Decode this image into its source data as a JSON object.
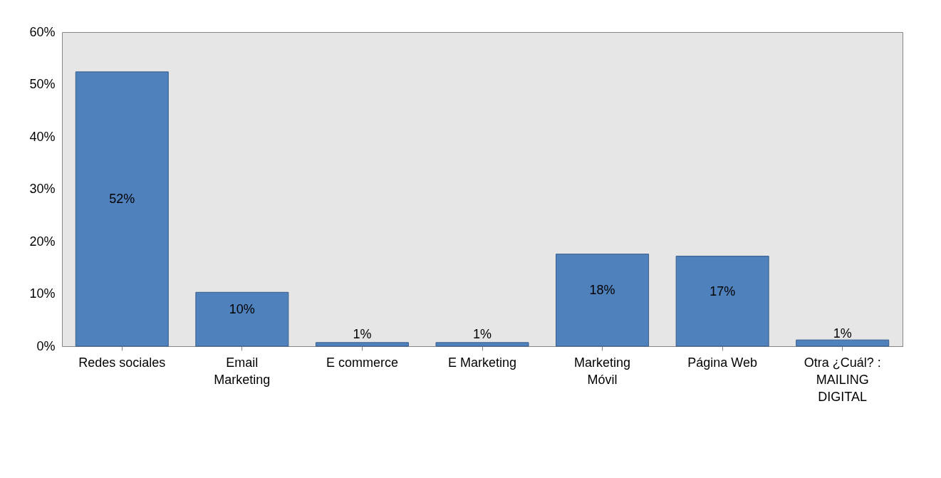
{
  "chart_data": {
    "type": "bar",
    "categories": [
      "Redes sociales",
      "Email Marketing",
      "E commerce",
      "E Marketing",
      "Marketing Móvil",
      "Página Web",
      "Otra ¿Cuál? : MAILING DIGITAL"
    ],
    "values": [
      52.4,
      10.3,
      0.7,
      0.7,
      17.6,
      17.2,
      1.2
    ],
    "value_labels": [
      "52%",
      "10%",
      "1%",
      "1%",
      "18%",
      "17%",
      "1%"
    ],
    "color": "#4f81bd",
    "ylim": [
      0,
      60
    ],
    "yticks": [
      {
        "value": 0,
        "label": "0%"
      },
      {
        "value": 10,
        "label": "10%"
      },
      {
        "value": 20,
        "label": "20%"
      },
      {
        "value": 30,
        "label": "30%"
      },
      {
        "value": 40,
        "label": "40%"
      },
      {
        "value": 50,
        "label": "50%"
      },
      {
        "value": 60,
        "label": "60%"
      }
    ],
    "grid": false
  }
}
